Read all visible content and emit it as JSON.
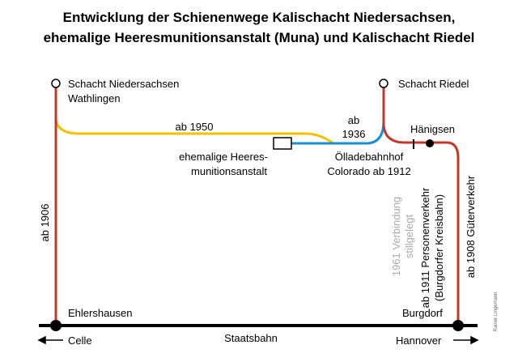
{
  "title": {
    "line1": "Entwicklung der Schienenwege Kalischacht Niedersachsen,",
    "line2": "ehemalige Heeresmunitionsanstalt (Muna) und Kalischacht Riedel"
  },
  "stations": {
    "schacht_niedersachsen": [
      "Schacht Niedersachsen",
      "Wathlingen"
    ],
    "schacht_riedel": "Schacht Riedel",
    "haenigsen": "Hänigsen",
    "muna": [
      "ehemalige Heeres-",
      "munitionsanstalt"
    ],
    "oelladebahnhof": [
      "Ölladebahnhof",
      "Colorado ab 1912"
    ],
    "ehlershausen": "Ehlershausen",
    "burgdorf": "Burgdorf",
    "celle": "Celle",
    "hannover": "Hannover"
  },
  "routes": {
    "ab_1950": "ab 1950",
    "ab_1936": [
      "ab",
      "1936"
    ],
    "ab_1906": "ab 1906",
    "verbindung_1961": [
      "1961 Verbindung",
      "stillgelegt"
    ],
    "personenverkehr": [
      "ab 1911 Personenverkehr",
      "(Burgdorfer Kreisbahn)"
    ],
    "gueterverkehr": "ab 1908 Güterverkehr",
    "staatsbahn": "Staatsbahn"
  },
  "author": "Rainer Lingemann"
}
